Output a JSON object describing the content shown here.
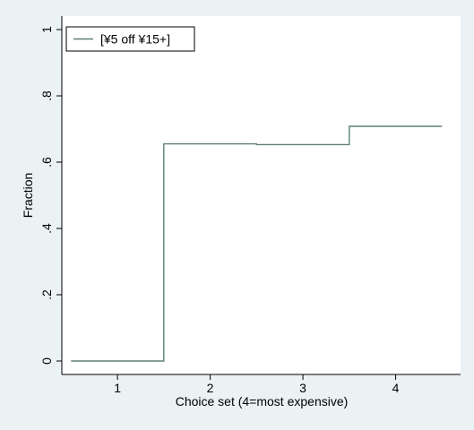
{
  "chart_data": {
    "type": "line",
    "subtype": "step",
    "title": "",
    "xlabel": "Choice set (4=most expensive)",
    "ylabel": "Fraction",
    "xlim": [
      0.4,
      4.7
    ],
    "ylim": [
      0,
      1
    ],
    "x_ticks": [
      1,
      2,
      3,
      4
    ],
    "x_tick_labels": [
      "1",
      "2",
      "3",
      "4"
    ],
    "y_ticks": [
      0,
      0.2,
      0.4,
      0.6,
      0.8,
      1
    ],
    "y_tick_labels": [
      "0",
      ".2",
      ".4",
      ".6",
      ".8",
      "1"
    ],
    "grid": false,
    "legend_position": "top-left",
    "series": [
      {
        "name": "[¥5 off ¥15+]",
        "color": "#5f7f7a",
        "x": [
          1,
          2,
          3,
          4
        ],
        "values": [
          0.0,
          0.655,
          0.653,
          0.708
        ]
      }
    ]
  }
}
